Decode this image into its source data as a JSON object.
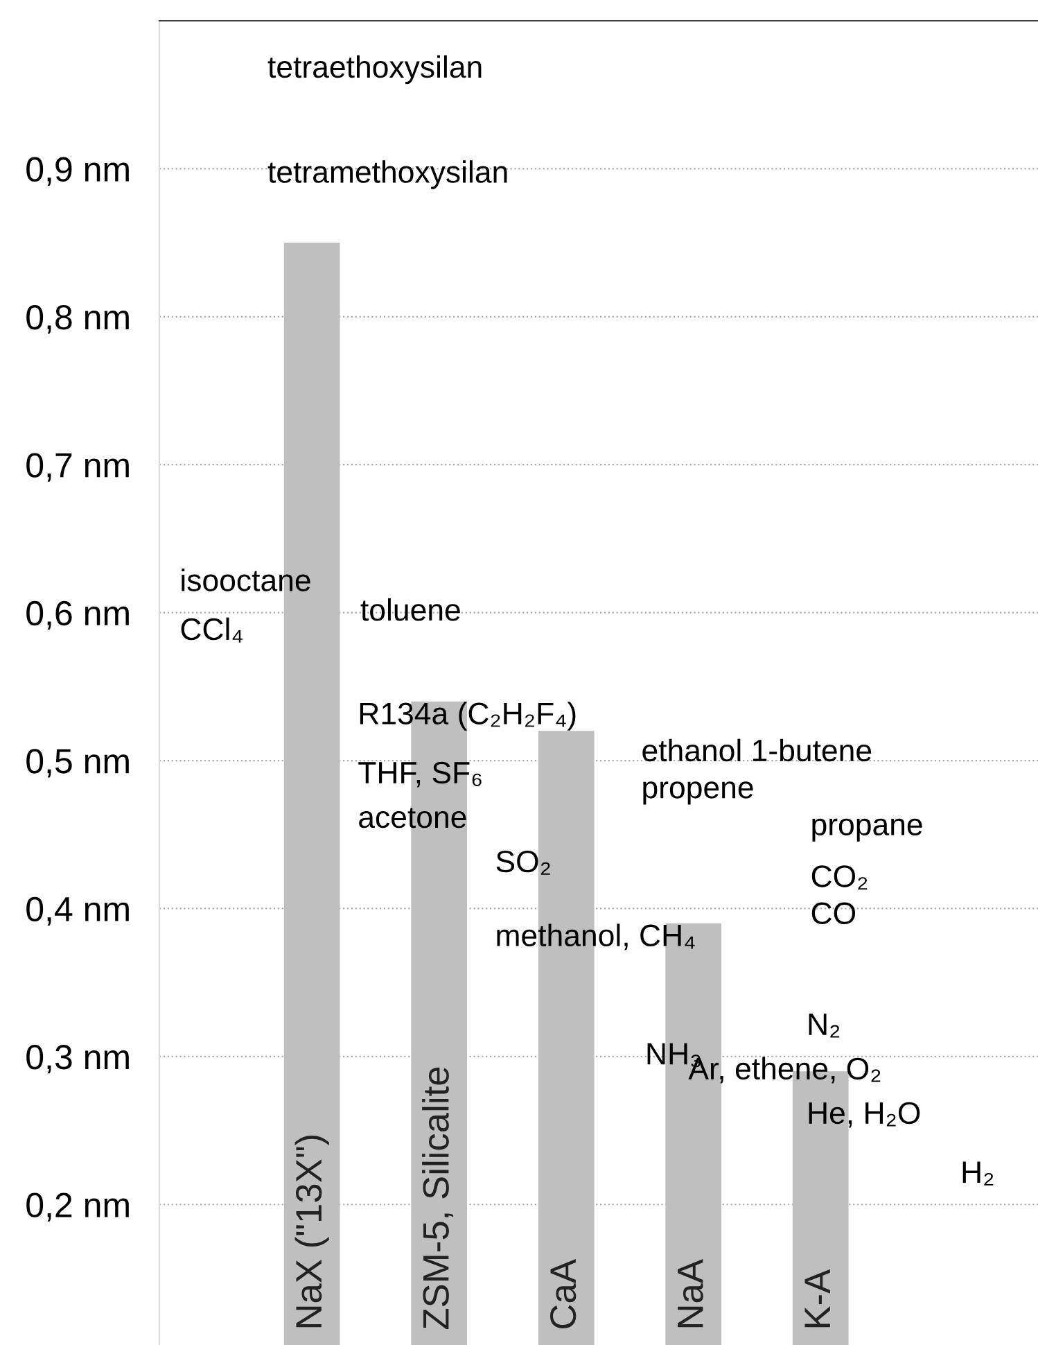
{
  "chart_data": {
    "type": "bar",
    "categories": [
      "NaX (\"13X\")",
      "ZSM-5, Silicalite",
      "CaA",
      "NaA",
      "K-A"
    ],
    "values": [
      0.85,
      0.54,
      0.52,
      0.39,
      0.29
    ],
    "color": "#bfbfbf",
    "ylim": [
      0.105,
      1.0
    ],
    "yticks": [
      {
        "value": 0.2,
        "label": "0,2 nm"
      },
      {
        "value": 0.3,
        "label": "0,3 nm"
      },
      {
        "value": 0.4,
        "label": "0,4 nm"
      },
      {
        "value": 0.5,
        "label": "0,5 nm"
      },
      {
        "value": 0.6,
        "label": "0,6 nm"
      },
      {
        "value": 0.7,
        "label": "0,7 nm"
      },
      {
        "value": 0.8,
        "label": "0,8 nm"
      },
      {
        "value": 0.9,
        "label": "0,9 nm"
      }
    ],
    "grid": "y",
    "annotations": [
      "tetraethoxysilan",
      "tetramethoxysilan",
      "isooctane",
      "CCl₄",
      "toluene",
      "R134a (C₂H₂F₄)",
      "THF, SF₆",
      "acetone",
      "SO₂",
      "ethanol 1-butene",
      "propene",
      "propane",
      "CO₂",
      "CO",
      "methanol, CH₄",
      "NH₃",
      "N₂",
      "Ar, ethene, O₂",
      "He, H₂O",
      "H₂"
    ]
  }
}
